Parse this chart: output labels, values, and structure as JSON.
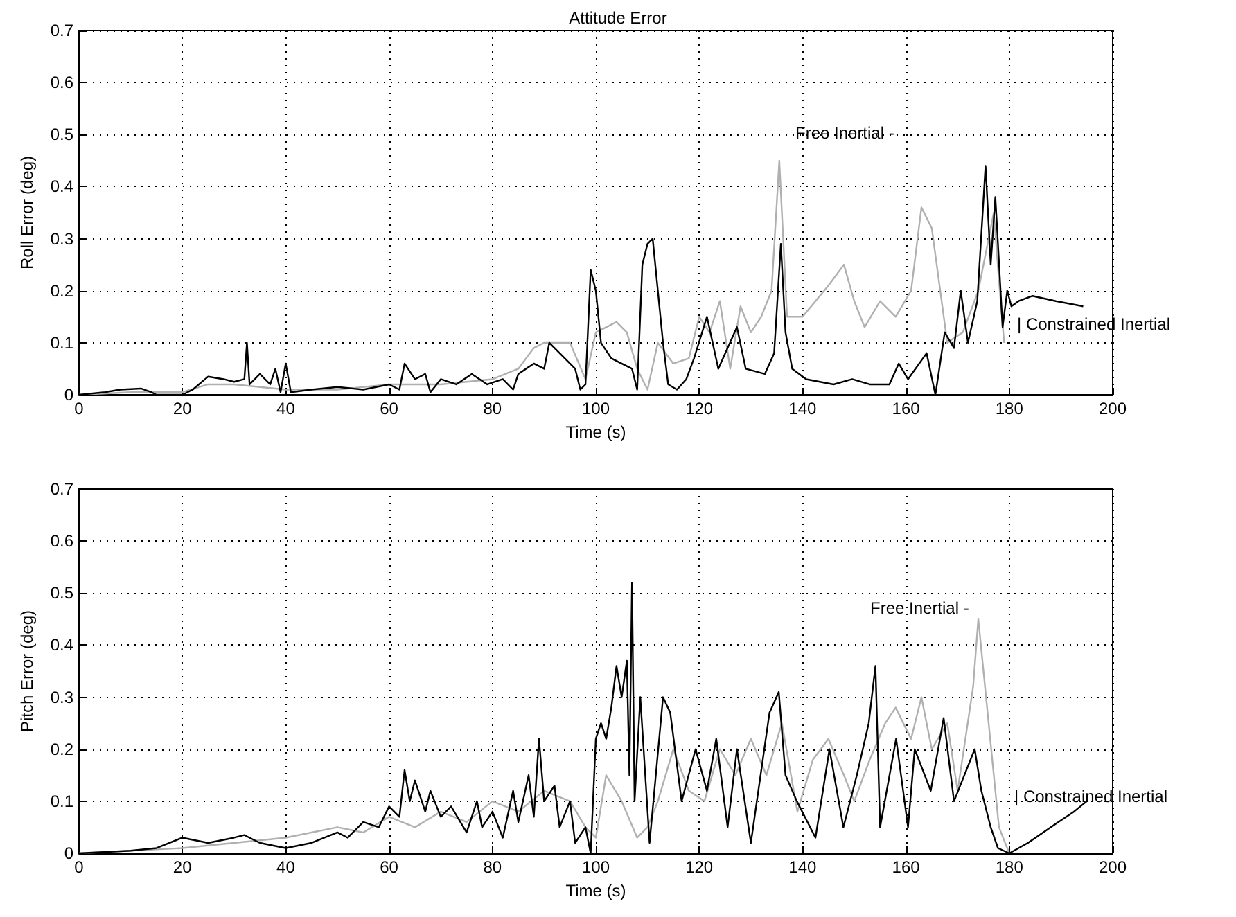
{
  "chart_data": [
    {
      "type": "line",
      "title": "Attitude Error",
      "xlabel": "Time (s)",
      "ylabel": "Roll Error (deg)",
      "xlim": [
        0,
        200
      ],
      "xticks": [
        0,
        20,
        40,
        60,
        80,
        100,
        120,
        140,
        160,
        180,
        200
      ],
      "ylim": [
        0,
        0.7
      ],
      "yticks": [
        0,
        0.1,
        0.2,
        0.3,
        0.4,
        0.5,
        0.6,
        0.7
      ],
      "grid": true,
      "series": [
        {
          "name": "Free Inertial -",
          "color": "#b0b0b0",
          "x": [
            0,
            10,
            20,
            25,
            30,
            40,
            50,
            60,
            70,
            80,
            85,
            88,
            90,
            92,
            95,
            98,
            100,
            102,
            104,
            106,
            108,
            110,
            112,
            115,
            118,
            120,
            122,
            124,
            126,
            128,
            130,
            132,
            134,
            135.5,
            137,
            140,
            145,
            148,
            150,
            152,
            155,
            158,
            161,
            163,
            165,
            168,
            171,
            174,
            176,
            177,
            178,
            179
          ],
          "values": [
            0,
            0.005,
            0.005,
            0.02,
            0.02,
            0.01,
            0.01,
            0.02,
            0.02,
            0.03,
            0.05,
            0.09,
            0.1,
            0.1,
            0.1,
            0.03,
            0.12,
            0.13,
            0.14,
            0.12,
            0.05,
            0.01,
            0.1,
            0.06,
            0.07,
            0.15,
            0.12,
            0.18,
            0.05,
            0.17,
            0.12,
            0.15,
            0.2,
            0.45,
            0.15,
            0.15,
            0.21,
            0.25,
            0.18,
            0.13,
            0.18,
            0.15,
            0.2,
            0.36,
            0.32,
            0.1,
            0.12,
            0.2,
            0.3,
            0.35,
            0.22,
            0.1
          ]
        },
        {
          "name": "| Constrained Inertial",
          "color": "#000000",
          "x": [
            0,
            5,
            8,
            12,
            14,
            15,
            20,
            22,
            25,
            28,
            30,
            32,
            32.5,
            33,
            35,
            37,
            38,
            39,
            40,
            41,
            45,
            50,
            55,
            60,
            62,
            63,
            65,
            67,
            68,
            70,
            73,
            76,
            79,
            82,
            84,
            85,
            88,
            90,
            91,
            93,
            96,
            97,
            98,
            99,
            100,
            101,
            103,
            105,
            107,
            108,
            109,
            110,
            111,
            112,
            113,
            114,
            115.7,
            117.5,
            119,
            121.5,
            123.7,
            127.3,
            129,
            132.7,
            134.5,
            135.8,
            136.7,
            138,
            140.7,
            146,
            149.6,
            153,
            156.8,
            158.6,
            160.4,
            164,
            165.7,
            167.5,
            169.3,
            170.6,
            172,
            173.8,
            175.4,
            176.4,
            177.3,
            178.7,
            179.6,
            180.4,
            181.8,
            184.5,
            189,
            194.3
          ],
          "values": [
            0,
            0.005,
            0.01,
            0.012,
            0.005,
            0,
            0,
            0.01,
            0.035,
            0.03,
            0.025,
            0.03,
            0.1,
            0.02,
            0.04,
            0.02,
            0.05,
            0.005,
            0.06,
            0.005,
            0.01,
            0.015,
            0.01,
            0.02,
            0.01,
            0.06,
            0.03,
            0.04,
            0.005,
            0.03,
            0.02,
            0.04,
            0.02,
            0.03,
            0.01,
            0.04,
            0.06,
            0.05,
            0.1,
            0.08,
            0.05,
            0.01,
            0.02,
            0.24,
            0.2,
            0.1,
            0.07,
            0.06,
            0.05,
            0.01,
            0.25,
            0.29,
            0.3,
            0.2,
            0.1,
            0.02,
            0.01,
            0.03,
            0.07,
            0.15,
            0.05,
            0.13,
            0.05,
            0.04,
            0.08,
            0.29,
            0.12,
            0.05,
            0.03,
            0.02,
            0.03,
            0.02,
            0.02,
            0.06,
            0.03,
            0.08,
            0,
            0.12,
            0.09,
            0.2,
            0.1,
            0.18,
            0.44,
            0.25,
            0.38,
            0.13,
            0.2,
            0.17,
            0.18,
            0.19,
            0.18,
            0.17
          ]
        }
      ]
    },
    {
      "type": "line",
      "xlabel": "Time (s)",
      "ylabel": "Pitch Error (deg)",
      "xlim": [
        0,
        200
      ],
      "xticks": [
        0,
        20,
        40,
        60,
        80,
        100,
        120,
        140,
        160,
        180,
        200
      ],
      "ylim": [
        0,
        0.7
      ],
      "yticks": [
        0,
        0.1,
        0.2,
        0.3,
        0.4,
        0.5,
        0.6,
        0.7
      ],
      "grid": true,
      "series": [
        {
          "name": "Free Inertial -",
          "color": "#b0b0b0",
          "x": [
            0,
            20,
            30,
            40,
            50,
            55,
            60,
            65,
            70,
            75,
            80,
            85,
            90,
            95,
            98,
            100,
            102,
            105,
            108,
            110,
            112,
            115,
            118,
            121,
            124,
            127,
            130,
            133,
            136,
            139,
            142,
            145,
            148,
            150,
            153,
            156,
            158,
            161,
            163,
            165,
            168,
            170,
            173,
            174,
            178,
            180
          ],
          "values": [
            0,
            0.01,
            0.02,
            0.03,
            0.05,
            0.04,
            0.07,
            0.05,
            0.08,
            0.06,
            0.1,
            0.08,
            0.12,
            0.1,
            0.05,
            0.03,
            0.15,
            0.1,
            0.03,
            0.05,
            0.1,
            0.2,
            0.12,
            0.1,
            0.2,
            0.15,
            0.22,
            0.15,
            0.25,
            0.08,
            0.18,
            0.22,
            0.15,
            0.1,
            0.18,
            0.25,
            0.28,
            0.22,
            0.3,
            0.2,
            0.25,
            0.12,
            0.32,
            0.45,
            0.05,
            0
          ]
        },
        {
          "name": "| Constrained Inertial",
          "color": "#000000",
          "x": [
            0,
            10,
            15,
            20,
            25,
            30,
            32,
            35,
            40,
            45,
            50,
            52,
            55,
            58,
            60,
            62,
            63,
            64,
            65,
            67,
            68,
            70,
            72,
            75,
            77,
            78,
            80,
            82,
            84,
            85,
            87,
            88,
            89,
            90,
            92,
            93,
            95,
            96,
            98,
            99,
            100,
            101,
            102,
            103,
            104,
            105,
            106,
            106.5,
            107,
            107.5,
            108.6,
            110.4,
            113,
            114.4,
            116.6,
            119.3,
            121.5,
            123.3,
            125.5,
            127.3,
            130,
            133.6,
            135.4,
            136.7,
            138.9,
            142.5,
            145.2,
            147.9,
            150.5,
            152.8,
            154.1,
            155,
            158.1,
            160.4,
            161.7,
            164.8,
            167.3,
            169.3,
            173.3,
            174.6,
            176.4,
            177.8,
            180,
            183.6,
            188,
            192.5,
            195
          ],
          "values": [
            0,
            0.005,
            0.01,
            0.03,
            0.02,
            0.03,
            0.035,
            0.02,
            0.01,
            0.02,
            0.04,
            0.03,
            0.06,
            0.05,
            0.09,
            0.07,
            0.16,
            0.1,
            0.14,
            0.08,
            0.12,
            0.07,
            0.09,
            0.04,
            0.1,
            0.05,
            0.08,
            0.03,
            0.12,
            0.06,
            0.15,
            0.07,
            0.22,
            0.1,
            0.13,
            0.05,
            0.1,
            0.02,
            0.05,
            0,
            0.22,
            0.25,
            0.22,
            0.28,
            0.36,
            0.3,
            0.37,
            0.15,
            0.52,
            0.1,
            0.3,
            0.02,
            0.3,
            0.27,
            0.1,
            0.2,
            0.12,
            0.22,
            0.05,
            0.2,
            0.02,
            0.27,
            0.31,
            0.15,
            0.1,
            0.03,
            0.2,
            0.05,
            0.15,
            0.25,
            0.36,
            0.05,
            0.22,
            0.05,
            0.2,
            0.12,
            0.26,
            0.1,
            0.2,
            0.12,
            0.05,
            0.01,
            0,
            0.02,
            0.05,
            0.08,
            0.1
          ]
        }
      ]
    }
  ]
}
